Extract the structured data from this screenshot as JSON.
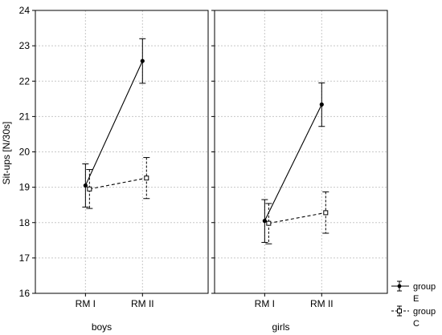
{
  "chart_data": {
    "type": "line",
    "ylabel": "Sit-ups [N/30s]",
    "ylim": [
      16,
      24
    ],
    "y_ticks": [
      16,
      17,
      18,
      19,
      20,
      21,
      22,
      23,
      24
    ],
    "categories": [
      "RM I",
      "RM II"
    ],
    "grid": true,
    "legend_position": "bottom-right",
    "panels": [
      {
        "label": "boys",
        "series": [
          {
            "name": "group E",
            "values": [
              19.05,
              22.57
            ],
            "error_low": [
              18.44,
              21.94
            ],
            "error_high": [
              19.66,
              23.2
            ],
            "style": "solid",
            "marker": "filled-circle"
          },
          {
            "name": "group C",
            "values": [
              18.95,
              19.26
            ],
            "error_low": [
              18.4,
              18.68
            ],
            "error_high": [
              19.5,
              19.84
            ],
            "style": "dashed",
            "marker": "open-square"
          }
        ]
      },
      {
        "label": "girls",
        "series": [
          {
            "name": "group E",
            "values": [
              18.05,
              21.34
            ],
            "error_low": [
              17.44,
              20.72
            ],
            "error_high": [
              18.65,
              21.95
            ],
            "style": "solid",
            "marker": "filled-circle"
          },
          {
            "name": "group C",
            "values": [
              17.98,
              18.28
            ],
            "error_low": [
              17.4,
              17.7
            ],
            "error_high": [
              18.54,
              18.87
            ],
            "style": "dashed",
            "marker": "open-square"
          }
        ]
      }
    ],
    "legend": [
      {
        "line1": "group",
        "line2": "E",
        "style": "solid",
        "marker": "filled-circle"
      },
      {
        "line1": "group",
        "line2": "C",
        "style": "dashed",
        "marker": "open-square"
      }
    ]
  }
}
